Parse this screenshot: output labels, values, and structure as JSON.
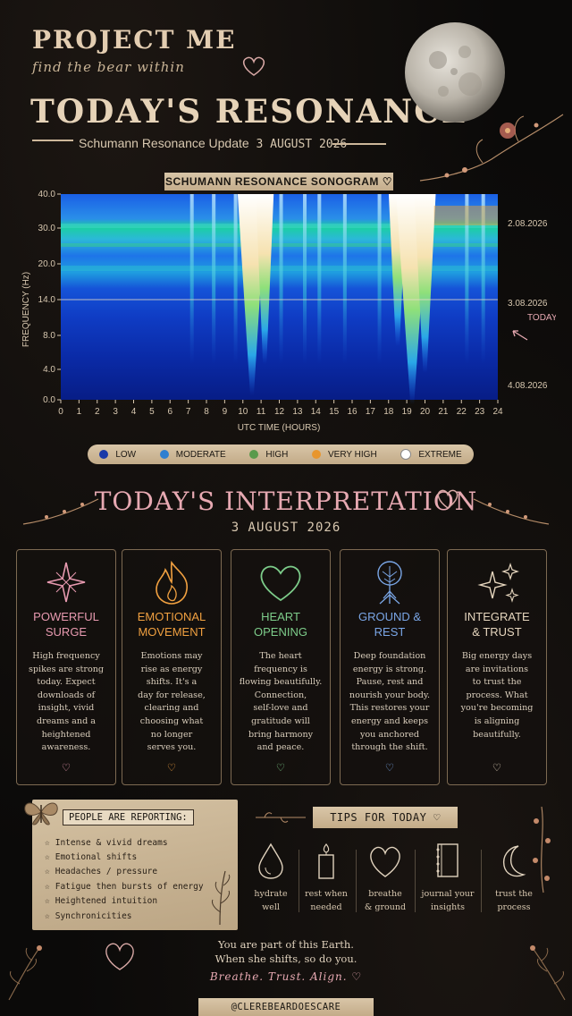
{
  "header": {
    "title": "PROJECT ME",
    "tagline": "find the bear within",
    "main_title": "TODAY'S RESONANCE",
    "update_label": "Schumann Resonance Update",
    "update_date": "3 AUGUST 2026"
  },
  "sonogram": {
    "label": "SCHUMANN RESONANCE SONOGRAM ♡",
    "y_axis_label": "FREQUENCY (Hz)",
    "x_axis_label": "UTC TIME (HOURS)",
    "y_ticks": [
      "40.0",
      "30.0",
      "20.0",
      "14.0",
      "8.0",
      "4.0",
      "0.0"
    ],
    "x_ticks": [
      "0",
      "1",
      "2",
      "3",
      "4",
      "5",
      "6",
      "7",
      "8",
      "9",
      "10",
      "11",
      "12",
      "13",
      "14",
      "15",
      "16",
      "17",
      "18",
      "19",
      "20",
      "21",
      "22",
      "23",
      "24"
    ],
    "date_markers": [
      "2.08.2026",
      "3.08.2026",
      "4.08.2026"
    ],
    "today_label": "TODAY",
    "colors": {
      "low": "#0a1f8f",
      "moderate": "#1d6ff2",
      "high": "#2fd36b",
      "very_high": "#f2a12a",
      "extreme": "#ffffff"
    }
  },
  "legend": [
    {
      "label": "LOW",
      "color": "#1a3aa8"
    },
    {
      "label": "MODERATE",
      "color": "#2f7fd0"
    },
    {
      "label": "HIGH",
      "color": "#5a9a4c"
    },
    {
      "label": "VERY HIGH",
      "color": "#e8962e"
    },
    {
      "label": "EXTREME",
      "color": "#ffffff"
    }
  ],
  "interpretation": {
    "title": "TODAY'S INTERPRETATION",
    "date": "3 AUGUST 2026",
    "cards": [
      {
        "icon": "sparkle-star-icon",
        "title_line1": "POWERFUL",
        "title_line2": "SURGE",
        "color": "#e89ab0",
        "body": [
          "High frequency",
          "spikes are strong",
          "today. Expect",
          "downloads of",
          "insight, vivid",
          "dreams and a",
          "heightened",
          "awareness."
        ]
      },
      {
        "icon": "flame-icon",
        "title_line1": "EMOTIONAL",
        "title_line2": "MOVEMENT",
        "color": "#f0a040",
        "body": [
          "Emotions may",
          "rise as energy",
          "shifts. It's a",
          "day for release,",
          "clearing and",
          "choosing what",
          "no longer",
          "serves you."
        ]
      },
      {
        "icon": "heart-icon",
        "title_line1": "HEART",
        "title_line2": "OPENING",
        "color": "#7dcc8a",
        "body": [
          "The heart",
          "frequency is",
          "flowing beautifully.",
          "Connection,",
          "self-love and",
          "gratitude will",
          "bring harmony",
          "and peace."
        ]
      },
      {
        "icon": "tree-roots-icon",
        "title_line1": "GROUND &",
        "title_line2": "REST",
        "color": "#7aa6e6",
        "body": [
          "Deep foundation",
          "energy is strong.",
          "Pause, rest and",
          "nourish your body.",
          "This restores your",
          "energy and keeps",
          "you anchored",
          "through the shift."
        ]
      },
      {
        "icon": "sparkles-icon",
        "title_line1": "INTEGRATE",
        "title_line2": "& TRUST",
        "color": "#e6d6be",
        "body": [
          "Big energy days",
          "are invitations",
          "to trust the",
          "process. What",
          "you're becoming",
          "is aligning",
          "beautifully."
        ]
      }
    ],
    "card_heart": "♡"
  },
  "people": {
    "label": "PEOPLE ARE REPORTING:",
    "items": [
      "Intense & vivid dreams",
      "Emotional shifts",
      "Headaches / pressure",
      "Fatigue then bursts of energy",
      "Heightened intuition",
      "Synchronicities"
    ],
    "bullet": "☆"
  },
  "tips": {
    "label": "TIPS FOR TODAY ♡",
    "items": [
      {
        "icon": "water-drop-icon",
        "line1": "hydrate",
        "line2": "well"
      },
      {
        "icon": "candle-icon",
        "line1": "rest when",
        "line2": "needed"
      },
      {
        "icon": "heart-outline-icon",
        "line1": "breathe",
        "line2": "& ground"
      },
      {
        "icon": "journal-icon",
        "line1": "journal your",
        "line2": "insights"
      },
      {
        "icon": "crescent-moon-icon",
        "line1": "trust the",
        "line2": "process"
      }
    ]
  },
  "closing": {
    "line1": "You are part of this Earth.",
    "line2": "When she shifts, so do you.",
    "line3": "Breathe. Trust. Align. ♡"
  },
  "handle": "@CLEREBEARDOESCARE"
}
